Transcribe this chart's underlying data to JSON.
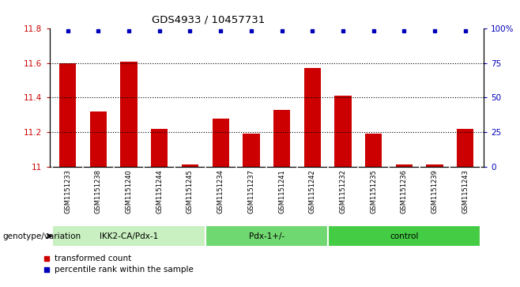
{
  "title": "GDS4933 / 10457731",
  "samples": [
    "GSM1151233",
    "GSM1151238",
    "GSM1151240",
    "GSM1151244",
    "GSM1151245",
    "GSM1151234",
    "GSM1151237",
    "GSM1151241",
    "GSM1151242",
    "GSM1151232",
    "GSM1151235",
    "GSM1151236",
    "GSM1151239",
    "GSM1151243"
  ],
  "bar_values": [
    11.6,
    11.32,
    11.61,
    11.22,
    11.01,
    11.28,
    11.19,
    11.33,
    11.57,
    11.41,
    11.19,
    11.01,
    11.01,
    11.22
  ],
  "ylim_left": [
    11.0,
    11.8
  ],
  "ylim_right": [
    0,
    100
  ],
  "yticks_left": [
    11.0,
    11.2,
    11.4,
    11.6,
    11.8
  ],
  "yticks_right": [
    0,
    25,
    50,
    75,
    100
  ],
  "ytick_labels_left": [
    "11",
    "11.2",
    "11.4",
    "11.6",
    "11.8"
  ],
  "ytick_labels_right": [
    "0",
    "25",
    "50",
    "75",
    "100%"
  ],
  "bar_color": "#cc0000",
  "percentile_color": "#0000bb",
  "group_labels": [
    "IKK2-CA/Pdx-1",
    "Pdx-1+/-",
    "control"
  ],
  "group_ranges": [
    [
      0,
      4
    ],
    [
      5,
      8
    ],
    [
      9,
      13
    ]
  ],
  "group_colors": [
    "#c8f0c0",
    "#70d870",
    "#44cc44"
  ],
  "genotype_label": "genotype/variation",
  "legend_bar_label": "transformed count",
  "legend_percentile_label": "percentile rank within the sample",
  "dotted_line_y": [
    11.2,
    11.4,
    11.6
  ],
  "bar_width": 0.55,
  "background_color": "#ffffff",
  "tick_color_left": "#cc0000",
  "tick_color_right": "#0000bb",
  "sample_bg_color": "#d0d0d0",
  "sample_sep_color": "#ffffff"
}
